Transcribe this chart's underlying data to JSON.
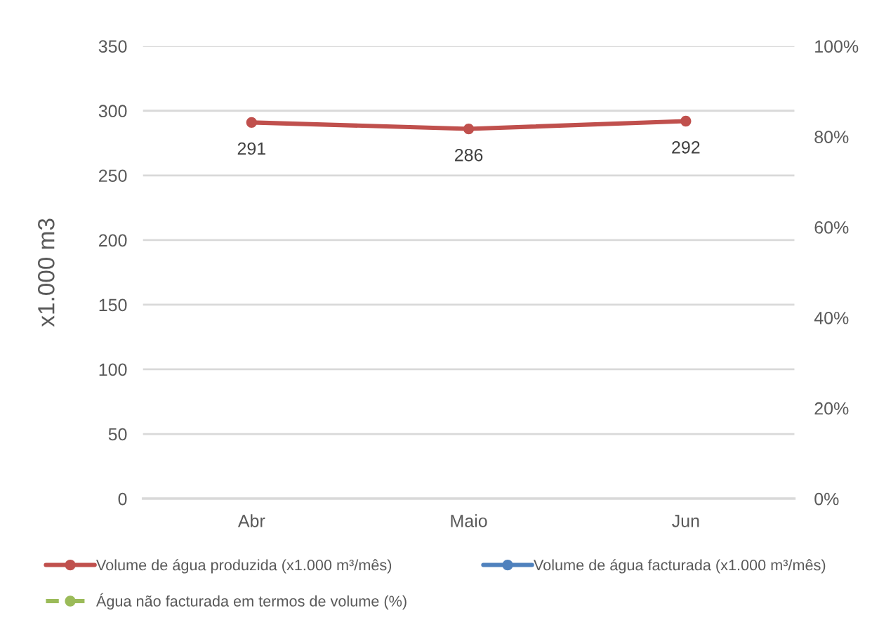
{
  "chart_data": {
    "type": "line",
    "ylabel": "x1.000 m3",
    "categories": [
      "Abr",
      "Maio",
      "Jun"
    ],
    "series": [
      {
        "name": "Volume de água produzida (x1.000 m³/mês)",
        "color": "#c0504d",
        "values": [
          291,
          286,
          292
        ]
      },
      {
        "name": "Volume de água facturada (x1.000 m³/mês)",
        "color": "#4f81bd",
        "values": [
          null,
          null,
          null
        ]
      },
      {
        "name": "Água não facturada em termos de volume (%)",
        "color": "#9bbb59",
        "values": [
          null,
          null,
          null
        ],
        "line_style": "dashed"
      }
    ],
    "ylim": [
      0,
      350
    ],
    "yticks": [
      0,
      50,
      100,
      150,
      200,
      250,
      300,
      350
    ],
    "y2lim": [
      0,
      100
    ],
    "y2ticks": [
      {
        "value": 0,
        "label": "0%"
      },
      {
        "value": 20,
        "label": "20%"
      },
      {
        "value": 40,
        "label": "40%"
      },
      {
        "value": 60,
        "label": "60%"
      },
      {
        "value": 80,
        "label": "80%"
      },
      {
        "value": 100,
        "label": "100%"
      }
    ],
    "data_labels": true,
    "grid": "y",
    "legend": "bottom",
    "marker": "circle",
    "line_style": "solid"
  }
}
